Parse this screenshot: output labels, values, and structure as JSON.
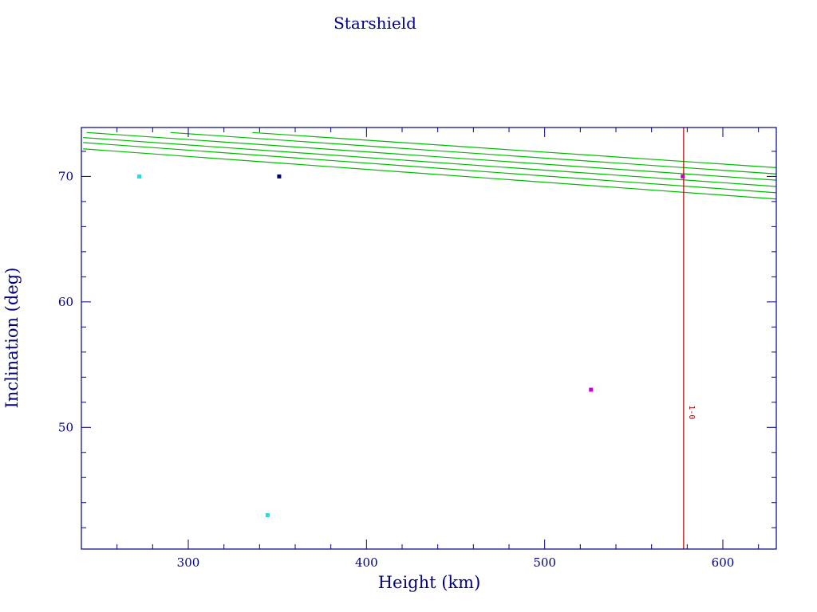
{
  "chart_data": {
    "type": "scatter",
    "title": "Starshield",
    "xlabel": "Height (km)",
    "ylabel": "Inclination (deg)",
    "xlim": [
      240,
      630
    ],
    "ylim": [
      40.3,
      73.9
    ],
    "x_ticks": [
      300,
      400,
      500,
      600
    ],
    "y_ticks": [
      50,
      60,
      70
    ],
    "x_minor_step": 20,
    "y_minor_step": 2,
    "grid": false,
    "points": [
      {
        "x": 272.5,
        "y": 70,
        "color": "#22dddd"
      },
      {
        "x": 344.5,
        "y": 43,
        "color": "#22dddd"
      },
      {
        "x": 351,
        "y": 70,
        "color": "#000080"
      },
      {
        "x": 526,
        "y": 53,
        "color": "#cc00cc"
      },
      {
        "x": 577.5,
        "y": 70,
        "color": "#cc00cc"
      }
    ],
    "curves": [
      {
        "x_start": 241,
        "y_start": 72.2,
        "x_end": 630,
        "y_end": 68.2
      },
      {
        "x_start": 241,
        "y_start": 72.7,
        "x_end": 630,
        "y_end": 68.7
      },
      {
        "x_start": 241,
        "y_start": 73.1,
        "x_end": 630,
        "y_end": 69.2
      },
      {
        "x_start": 243,
        "y_start": 73.5,
        "x_end": 630,
        "y_end": 69.7
      },
      {
        "x_start": 290,
        "y_start": 73.5,
        "x_end": 630,
        "y_end": 70.2
      },
      {
        "x_start": 336,
        "y_start": 73.5,
        "x_end": 630,
        "y_end": 70.7
      }
    ],
    "vertical_line": {
      "x": 578,
      "label": "1-0",
      "label_y": 51.2,
      "color": "#bb0000"
    },
    "colors": {
      "axis": "#000080",
      "text": "#000080",
      "curves": "#00bb00"
    }
  }
}
